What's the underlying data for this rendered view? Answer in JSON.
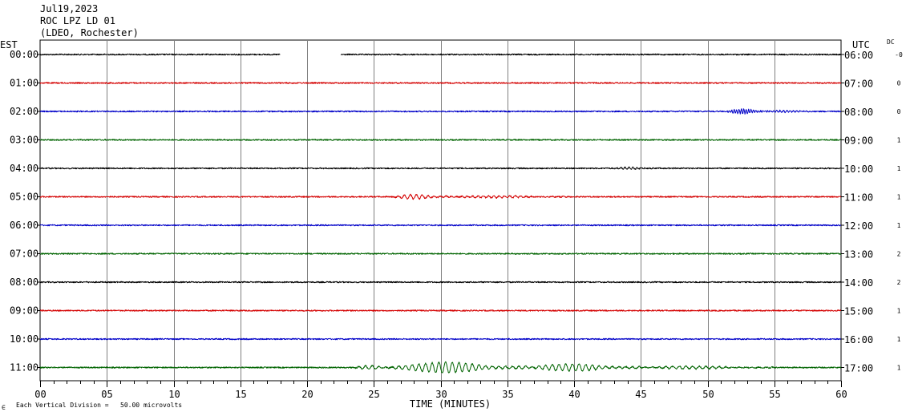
{
  "header": {
    "date": "Jul19,2023",
    "station": "ROC LPZ LD 01",
    "network": "(LDEO, Rochester)"
  },
  "labels": {
    "left_tz": "EST",
    "right_tz": "UTC",
    "dc_header": "DC",
    "scale_note": "Each Vertical Division =   50.00 microvolts",
    "scale_mark": "∈"
  },
  "colors": {
    "trace_cycle": [
      "#000000",
      "#d40000",
      "#0000c8",
      "#006400"
    ],
    "grid": "#808080",
    "axis": "#000000"
  },
  "chart_data": {
    "type": "line",
    "title": "ROC LPZ LD 01",
    "xlabel": "TIME (MINUTES)",
    "ylabel": "",
    "xlim": [
      0,
      60
    ],
    "x_ticks": [
      "00",
      "05",
      "10",
      "15",
      "20",
      "25",
      "30",
      "35",
      "40",
      "45",
      "50",
      "55",
      "60"
    ],
    "grid": true,
    "series": [
      {
        "est": "00:00",
        "utc": "06:00",
        "dc": "-0",
        "gaps": [
          [
            18,
            22.5
          ]
        ],
        "events": []
      },
      {
        "est": "01:00",
        "utc": "07:00",
        "dc": "0",
        "gaps": [],
        "events": []
      },
      {
        "est": "02:00",
        "utc": "08:00",
        "dc": "0",
        "gaps": [],
        "events": [
          {
            "start": 51.5,
            "end": 54.5,
            "amp": 3.0,
            "period": 0.18
          },
          {
            "start": 54.5,
            "end": 58,
            "amp": 1.2,
            "period": 0.25
          }
        ]
      },
      {
        "est": "03:00",
        "utc": "09:00",
        "dc": "1",
        "gaps": [],
        "events": []
      },
      {
        "est": "04:00",
        "utc": "10:00",
        "dc": "1",
        "gaps": [],
        "events": [
          {
            "start": 43,
            "end": 46,
            "amp": 1.4,
            "period": 0.3
          }
        ]
      },
      {
        "est": "05:00",
        "utc": "11:00",
        "dc": "1",
        "gaps": [],
        "events": [
          {
            "start": 26.5,
            "end": 30.5,
            "amp": 3.0,
            "period": 0.45
          },
          {
            "start": 30.5,
            "end": 40,
            "amp": 1.3,
            "period": 0.4
          }
        ]
      },
      {
        "est": "06:00",
        "utc": "12:00",
        "dc": "1",
        "gaps": [],
        "events": []
      },
      {
        "est": "07:00",
        "utc": "13:00",
        "dc": "2",
        "gaps": [],
        "events": []
      },
      {
        "est": "08:00",
        "utc": "14:00",
        "dc": "2",
        "gaps": [],
        "events": []
      },
      {
        "est": "09:00",
        "utc": "15:00",
        "dc": "1",
        "gaps": [],
        "events": []
      },
      {
        "est": "10:00",
        "utc": "16:00",
        "dc": "1",
        "gaps": [],
        "events": []
      },
      {
        "est": "11:00",
        "utc": "17:00",
        "dc": "1",
        "gaps": [],
        "events": [
          {
            "start": 23.5,
            "end": 26.5,
            "amp": 2.5,
            "period": 0.5
          },
          {
            "start": 26.5,
            "end": 36.5,
            "amp": 6.5,
            "period": 0.5
          },
          {
            "start": 36.5,
            "end": 45,
            "amp": 4.5,
            "period": 0.5
          },
          {
            "start": 45,
            "end": 55,
            "amp": 1.8,
            "period": 0.5
          }
        ]
      }
    ]
  }
}
